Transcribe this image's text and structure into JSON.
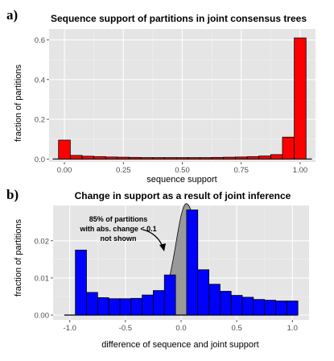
{
  "chart_data": [
    {
      "panel": "a)",
      "type": "bar",
      "title": "Sequence support of partitions in joint consensus trees",
      "xlabel": "sequence support",
      "ylabel": "fraction of partitions",
      "xlim": [
        -0.065,
        1.065
      ],
      "ylim": [
        -0.015,
        0.655
      ],
      "bin_width": 0.05,
      "x": [
        0.0,
        0.05,
        0.1,
        0.15,
        0.2,
        0.25,
        0.3,
        0.35,
        0.4,
        0.45,
        0.5,
        0.55,
        0.6,
        0.65,
        0.7,
        0.75,
        0.8,
        0.85,
        0.9,
        0.95,
        1.0
      ],
      "values": [
        0.095,
        0.018,
        0.014,
        0.012,
        0.01,
        0.009,
        0.008,
        0.007,
        0.007,
        0.007,
        0.007,
        0.007,
        0.007,
        0.008,
        0.009,
        0.01,
        0.012,
        0.015,
        0.022,
        0.11,
        0.61
      ],
      "xticks": [
        0.0,
        0.25,
        0.5,
        0.75,
        1.0
      ],
      "xtick_labels": [
        "0.00",
        "0.25",
        "0.50",
        "0.75",
        "1.00"
      ],
      "yticks": [
        0.0,
        0.2,
        0.4,
        0.6
      ],
      "ytick_labels": [
        "0.0",
        "0.2",
        "0.4",
        "0.6"
      ],
      "baseline_range": [
        -0.05,
        1.05
      ],
      "grid": true,
      "colors": {
        "bar": "#ff0000",
        "panel_bg": "#e5e5e5",
        "grid": "#ffffff"
      }
    },
    {
      "panel": "b)",
      "type": "bar",
      "title": "Change in support as a result of joint inference",
      "xlabel": "difference of sequence and joint support",
      "ylabel": "fraction of partitions",
      "xlim": [
        -1.15,
        1.15
      ],
      "ylim": [
        -0.0013,
        0.0295
      ],
      "bin_width": 0.1,
      "x": [
        -0.9,
        -0.8,
        -0.7,
        -0.6,
        -0.5,
        -0.4,
        -0.3,
        -0.2,
        -0.1,
        0.1,
        0.2,
        0.3,
        0.4,
        0.5,
        0.6,
        0.7,
        0.8,
        0.9,
        1.0
      ],
      "values": [
        0.0175,
        0.0061,
        0.0047,
        0.0044,
        0.0044,
        0.0045,
        0.0054,
        0.0066,
        0.0108,
        0.0283,
        0.0122,
        0.0083,
        0.0064,
        0.0053,
        0.0048,
        0.0042,
        0.004,
        0.0038,
        0.0038
      ],
      "excluded_region": {
        "range": [
          -0.1,
          0.1
        ],
        "color": "#999999",
        "shape": "density-peak"
      },
      "annotation": [
        "85%  of partitions",
        "with abs. change < 0.1",
        "not shown"
      ],
      "xticks": [
        -1.0,
        -0.5,
        0.0,
        0.5,
        1.0
      ],
      "xtick_labels": [
        "-1.0",
        "-0.5",
        "0.0",
        "0.5",
        "1.0"
      ],
      "yticks": [
        0.0,
        0.01,
        0.02
      ],
      "ytick_labels": [
        "0.00",
        "0.01",
        "0.02"
      ],
      "baseline_range": [
        -1.05,
        1.05
      ],
      "grid": true,
      "colors": {
        "bar": "#0000ff",
        "panel_bg": "#e5e5e5",
        "grid": "#ffffff"
      }
    }
  ]
}
